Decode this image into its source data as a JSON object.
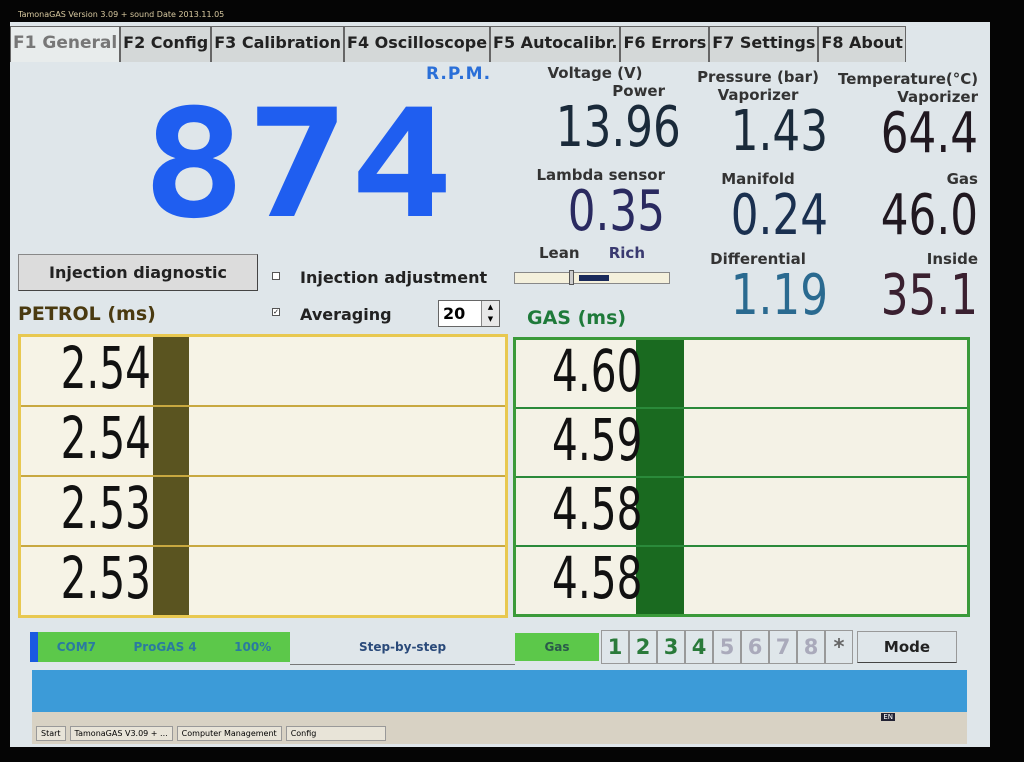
{
  "window": {
    "title": "TamonaGAS  Version 3.09 + sound  Date 2013.11.05"
  },
  "tabs": [
    {
      "label": "F1 General",
      "active": true
    },
    {
      "label": "F2 Config"
    },
    {
      "label": "F3 Calibration"
    },
    {
      "label": "F4 Oscilloscope"
    },
    {
      "label": "F5 Autocalibr."
    },
    {
      "label": "F6 Errors"
    },
    {
      "label": "F7 Settings"
    },
    {
      "label": "F8 About"
    }
  ],
  "rpm": {
    "label": "R.P.M.",
    "value": "874"
  },
  "voltage": {
    "header": "Voltage (V)",
    "power_label": "Power",
    "power": "13.96",
    "lambda_label": "Lambda sensor",
    "lambda": "0.35",
    "lean": "Lean",
    "rich": "Rich",
    "lambda_level": 0.25
  },
  "pressure": {
    "header": "Pressure (bar)",
    "vaporizer_label": "Vaporizer",
    "vaporizer": "1.43",
    "manifold_label": "Manifold",
    "manifold": "0.24",
    "differential_label": "Differential",
    "differential": "1.19"
  },
  "temperature": {
    "header": "Temperature(°C)",
    "vaporizer_label": "Vaporizer",
    "vaporizer": "64.4",
    "gas_label": "Gas",
    "gas": "46.0",
    "inside_label": "Inside",
    "inside": "35.1"
  },
  "controls": {
    "injection_diagnostic": "Injection diagnostic",
    "injection_adjustment": "Injection adjustment",
    "injection_adjustment_checked": false,
    "averaging": "Averaging",
    "averaging_checked": true,
    "averaging_value": "20"
  },
  "petrol": {
    "title": "PETROL (ms)",
    "values": [
      "2.54",
      "2.54",
      "2.53",
      "2.53"
    ],
    "color": "#e8c850"
  },
  "gas": {
    "title": "GAS (ms)",
    "values": [
      "4.60",
      "4.59",
      "4.58",
      "4.58"
    ],
    "color": "#3a9a3a"
  },
  "status": {
    "port": "COM7",
    "device": "ProGAS 4",
    "percent": "100%",
    "step": "Step-by-step",
    "fuel": "Gas",
    "cylinders": [
      "1",
      "2",
      "3",
      "4",
      "5",
      "6",
      "7",
      "8"
    ],
    "active_cylinders": 4,
    "star": "*",
    "mode": "Mode"
  },
  "taskbar": {
    "start": "Start",
    "items": [
      "TamonaGAS V3.09 + ...",
      "Computer Management",
      "Config"
    ],
    "lang": "EN"
  }
}
